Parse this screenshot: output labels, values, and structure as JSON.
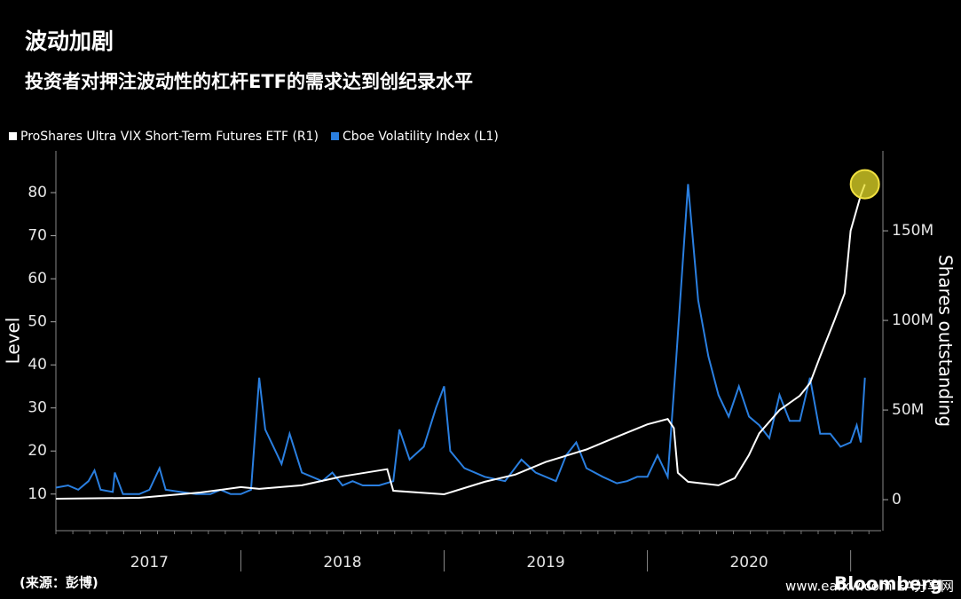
{
  "chart_data": {
    "type": "line",
    "title": "波动加剧",
    "subtitle": "投资者对押注波动性的杠杆ETF的需求达到创纪录水平",
    "source": "(来源：彭博)",
    "logo": "Bloomberg",
    "watermark": "www.eafxw.com EA分享网",
    "y_label": "Level",
    "y2_label": "Shares outstanding",
    "legend": "top-left",
    "xlim": [
      2017.09,
      2021.15
    ],
    "xticks": [
      {
        "value": 2017.55,
        "label": "2017"
      },
      {
        "value": 2018.5,
        "label": "2018"
      },
      {
        "value": 2019.5,
        "label": "2019"
      },
      {
        "value": 2020.5,
        "label": "2020"
      }
    ],
    "x_dividers": [
      2018,
      2019,
      2020,
      2021
    ],
    "ylim": [
      1.5,
      89.7
    ],
    "yticks": [
      10,
      20,
      30,
      40,
      50,
      60,
      70,
      80
    ],
    "y2lim": [
      -17300000,
      194600000
    ],
    "y2ticks": [
      0,
      {
        "value": 50000000,
        "label": "50M"
      },
      {
        "value": 100000000,
        "label": "100M"
      },
      {
        "value": 150000000,
        "label": "150M"
      }
    ],
    "highlight_last": true,
    "series": [
      {
        "name": "ProShares Ultra VIX Short-Term Futures ETF (R1)",
        "color": "#ffffff",
        "axis": "y2",
        "x": [
          2017.09,
          2017.5,
          2017.8,
          2018.0,
          2018.09,
          2018.3,
          2018.5,
          2018.72,
          2018.75,
          2019.0,
          2019.2,
          2019.35,
          2019.5,
          2019.7,
          2019.87,
          2020.0,
          2020.1,
          2020.13,
          2020.15,
          2020.2,
          2020.35,
          2020.43,
          2020.5,
          2020.55,
          2020.65,
          2020.75,
          2020.8,
          2020.85,
          2020.92,
          2020.97,
          2021.0,
          2021.05,
          2021.07
        ],
        "values": [
          500000,
          1000000,
          4000000,
          7000000,
          6000000,
          8000000,
          13000000,
          17000000,
          5000000,
          3000000,
          10000000,
          14000000,
          21000000,
          28000000,
          36000000,
          42000000,
          45000000,
          40000000,
          15000000,
          10000000,
          8000000,
          12000000,
          25000000,
          37000000,
          50000000,
          58000000,
          65000000,
          80000000,
          100000000,
          115000000,
          150000000,
          170000000,
          176000000
        ]
      },
      {
        "name": "Cboe Volatility Index (L1)",
        "color": "#2a7fe0",
        "axis": "y",
        "x": [
          2017.09,
          2017.15,
          2017.2,
          2017.25,
          2017.28,
          2017.31,
          2017.37,
          2017.38,
          2017.42,
          2017.5,
          2017.55,
          2017.6,
          2017.63,
          2017.7,
          2017.78,
          2017.85,
          2017.9,
          2017.95,
          2018.0,
          2018.05,
          2018.09,
          2018.12,
          2018.17,
          2018.2,
          2018.24,
          2018.3,
          2018.35,
          2018.4,
          2018.45,
          2018.5,
          2018.55,
          2018.6,
          2018.68,
          2018.75,
          2018.78,
          2018.83,
          2018.9,
          2018.96,
          2019.0,
          2019.03,
          2019.1,
          2019.2,
          2019.3,
          2019.38,
          2019.45,
          2019.55,
          2019.6,
          2019.65,
          2019.7,
          2019.78,
          2019.85,
          2019.9,
          2019.95,
          2020.0,
          2020.05,
          2020.1,
          2020.14,
          2020.2,
          2020.25,
          2020.3,
          2020.35,
          2020.4,
          2020.45,
          2020.5,
          2020.55,
          2020.6,
          2020.65,
          2020.7,
          2020.75,
          2020.8,
          2020.85,
          2020.9,
          2020.95,
          2021.0,
          2021.03,
          2021.05,
          2021.07
        ],
        "values": [
          11.5,
          12,
          11,
          13,
          15.5,
          11,
          10.5,
          15,
          10,
          10,
          11,
          16,
          11,
          10.5,
          10,
          10,
          11,
          10,
          10,
          11,
          37,
          25,
          20,
          17,
          24,
          15,
          14,
          13,
          15,
          12,
          13,
          12,
          12,
          13,
          25,
          18,
          21,
          30,
          35,
          20,
          16,
          14,
          13,
          18,
          15,
          13,
          19,
          22,
          16,
          14,
          12.5,
          13,
          14,
          14,
          19,
          14,
          40,
          82,
          55,
          42,
          33,
          28,
          35,
          28,
          26,
          23,
          33,
          27,
          27,
          37,
          24,
          24,
          21,
          22,
          26,
          22,
          37
        ]
      }
    ]
  }
}
